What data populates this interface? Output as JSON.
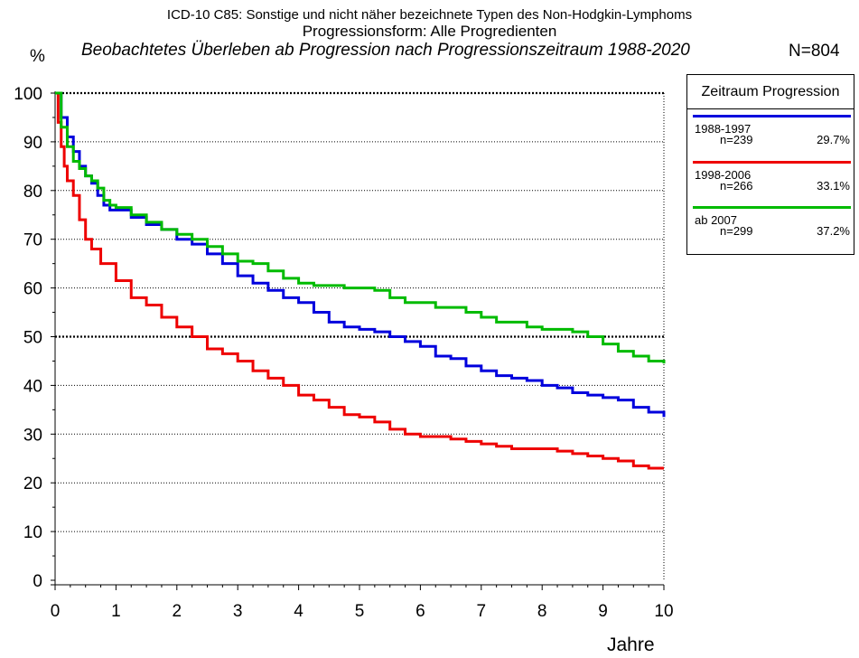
{
  "title_line1": "ICD-10 C85: Sonstige und nicht näher bezeichnete Typen des Non-Hodgkin-Lymphoms",
  "title_line2": "Progressionsform: Alle Progredienten",
  "title_line3": "Beobachtetes Überleben ab Progression nach Progressionszeitraum 1988-2020",
  "n_total": "N=804",
  "legend": {
    "title": "Zeitraum Progression",
    "items": [
      {
        "period": "1988-1997",
        "n": "n=239",
        "pct": "29.7%",
        "color": "#0000dd"
      },
      {
        "period": "1998-2006",
        "n": "n=266",
        "pct": "33.1%",
        "color": "#ee0000"
      },
      {
        "period": "ab 2007",
        "n": "n=299",
        "pct": "37.2%",
        "color": "#00bb00"
      }
    ]
  },
  "chart_data": {
    "type": "line",
    "xlabel": "Jahre",
    "ylabel": "%",
    "xlim": [
      0,
      10
    ],
    "ylim": [
      0,
      100
    ],
    "xticks": [
      0,
      1,
      2,
      3,
      4,
      5,
      6,
      7,
      8,
      9,
      10
    ],
    "yticks": [
      0,
      10,
      20,
      30,
      40,
      50,
      60,
      70,
      80,
      90,
      100
    ],
    "grid": true,
    "legend_position": "top-right",
    "series": [
      {
        "name": "1988-1997",
        "color": "#0000dd",
        "x": [
          0,
          0.1,
          0.2,
          0.3,
          0.4,
          0.5,
          0.6,
          0.7,
          0.8,
          0.9,
          1,
          1.25,
          1.5,
          1.75,
          2,
          2.25,
          2.5,
          2.75,
          3,
          3.25,
          3.5,
          3.75,
          4,
          4.25,
          4.5,
          4.75,
          5,
          5.25,
          5.5,
          5.75,
          6,
          6.25,
          6.5,
          6.75,
          7,
          7.25,
          7.5,
          7.75,
          8,
          8.25,
          8.5,
          8.75,
          9,
          9.25,
          9.5,
          9.75,
          10
        ],
        "y": [
          100,
          95,
          91,
          88,
          85,
          83,
          81.5,
          79,
          77,
          76,
          76,
          74.5,
          73,
          72,
          70,
          69,
          67,
          65,
          62.5,
          61,
          59.5,
          58,
          57,
          55,
          53,
          52,
          51.5,
          51,
          50,
          49,
          48,
          46,
          45.5,
          44,
          43,
          42,
          41.5,
          41,
          40,
          39.5,
          38.5,
          38,
          37.5,
          37,
          35.5,
          34.5,
          33.5
        ]
      },
      {
        "name": "1998-2006",
        "color": "#ee0000",
        "x": [
          0,
          0.05,
          0.1,
          0.15,
          0.2,
          0.3,
          0.4,
          0.5,
          0.6,
          0.75,
          1,
          1.25,
          1.5,
          1.75,
          2,
          2.25,
          2.5,
          2.75,
          3,
          3.25,
          3.5,
          3.75,
          4,
          4.25,
          4.5,
          4.75,
          5,
          5.25,
          5.5,
          5.75,
          6,
          6.25,
          6.5,
          6.75,
          7,
          7.25,
          7.5,
          7.75,
          8,
          8.25,
          8.5,
          8.75,
          9,
          9.25,
          9.5,
          9.75,
          10
        ],
        "y": [
          100,
          94,
          89,
          85,
          82,
          79,
          74,
          70,
          68,
          65,
          61.5,
          58,
          56.5,
          54,
          52,
          50,
          47.5,
          46.5,
          45,
          43,
          41.5,
          40,
          38,
          37,
          35.5,
          34,
          33.5,
          32.5,
          31,
          30,
          29.5,
          29.5,
          29,
          28.5,
          28,
          27.5,
          27,
          27,
          27,
          26.5,
          26,
          25.5,
          25,
          24.5,
          23.5,
          23,
          23
        ]
      },
      {
        "name": "ab 2007",
        "color": "#00bb00",
        "x": [
          0,
          0.1,
          0.2,
          0.3,
          0.4,
          0.5,
          0.6,
          0.7,
          0.8,
          0.9,
          1,
          1.25,
          1.5,
          1.75,
          2,
          2.25,
          2.5,
          2.75,
          3,
          3.25,
          3.5,
          3.75,
          4,
          4.25,
          4.5,
          4.75,
          5,
          5.25,
          5.5,
          5.75,
          6,
          6.25,
          6.5,
          6.75,
          7,
          7.25,
          7.5,
          7.75,
          8,
          8.25,
          8.5,
          8.75,
          9,
          9.25,
          9.5,
          9.75,
          10
        ],
        "y": [
          100,
          93,
          89,
          86,
          84.5,
          83,
          82,
          80.5,
          78,
          77,
          76.5,
          75,
          73.5,
          72,
          71,
          70,
          68.5,
          67,
          65.5,
          65,
          63.5,
          62,
          61,
          60.5,
          60.5,
          60,
          60,
          59.5,
          58,
          57,
          57,
          56,
          56,
          55,
          54,
          53,
          53,
          52,
          51.5,
          51.5,
          51,
          50,
          48.5,
          47,
          46,
          45,
          44.5
        ]
      }
    ]
  }
}
